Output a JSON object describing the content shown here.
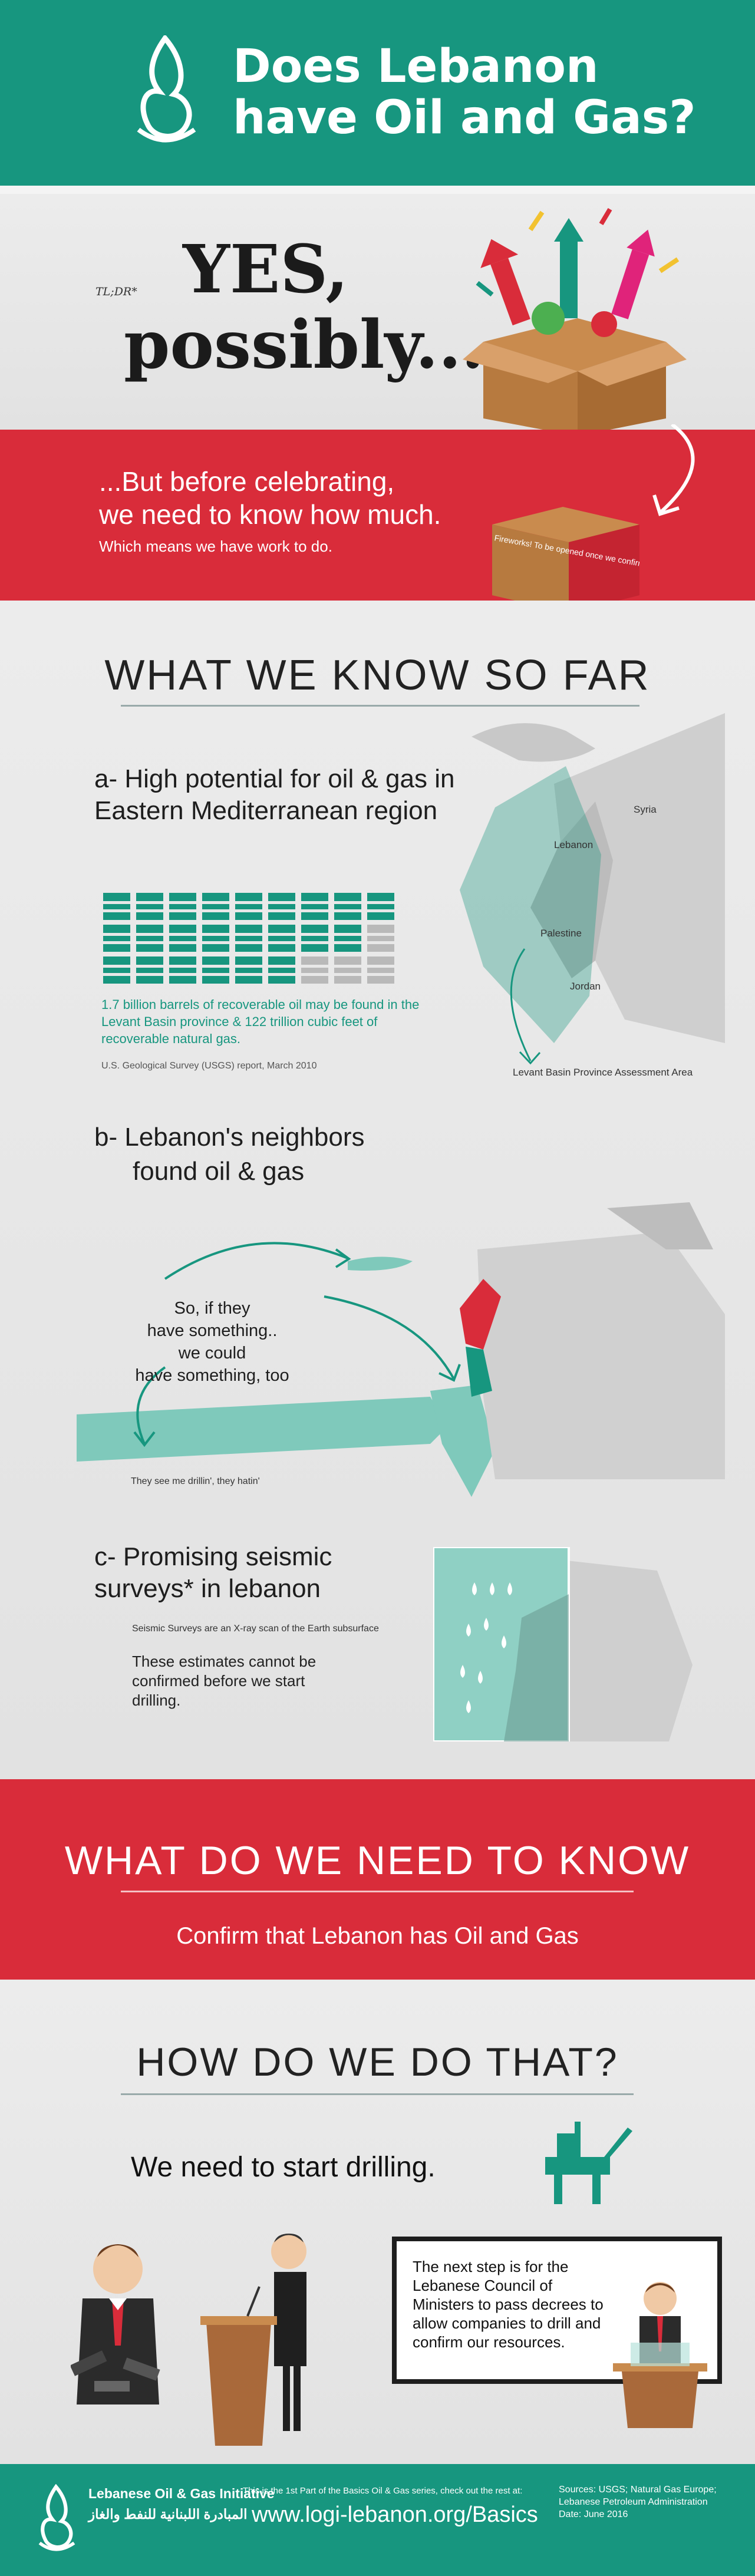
{
  "header": {
    "title_line1": "Does Lebanon",
    "title_line2": "have Oil and Gas?",
    "color": "#17967f"
  },
  "tldr": {
    "label": "TL;DR*",
    "answer_line1": "YES,",
    "answer_line2": "possibly..."
  },
  "caution": {
    "line1": "...But before celebrating,",
    "line2": "we need to know how much.",
    "note": "Which means we have work to do.",
    "box_text": "Fireworks! To be opened once we confirm oil & gas discovery",
    "color": "#d92c3a"
  },
  "what_we_know": {
    "title": "WHAT WE KNOW SO FAR",
    "a": {
      "heading": "a- High potential for oil & gas in Eastern Mediterranean region",
      "stat": "1.7 billion barrels of recoverable oil may be found in the Levant Basin province & 122 trillion cubic feet of recoverable natural gas.",
      "source": "U.S. Geological Survey (USGS) report, March 2010",
      "map_labels": {
        "syria": "Syria",
        "lebanon": "Lebanon",
        "palestine": "Palestine",
        "jordan": "Jordan",
        "levant": "Levant Basin Province Assessment Area"
      }
    },
    "b": {
      "heading_line1": "b- Lebanon's neighbors",
      "heading_line2": "found oil & gas",
      "text_line1": "So, if they",
      "text_line2": "have something..",
      "text_line3": "we could",
      "text_line4": "have something, too",
      "caption": "They see me drillin', they hatin'"
    },
    "c": {
      "heading": "c- Promising seismic surveys* in lebanon",
      "note": "Seismic Surveys are an X-ray scan of the Earth subsurface",
      "text": "These estimates cannot be confirmed before we start drilling."
    }
  },
  "need_to_know": {
    "title": "WHAT DO WE NEED TO KNOW",
    "subtitle": "Confirm that Lebanon has Oil and Gas"
  },
  "how": {
    "title": "HOW DO WE DO THAT?",
    "drill": "We need to start drilling.",
    "step": "The next step is for the Lebanese Council of Ministers to pass decrees to allow companies to drill and confirm our resources."
  },
  "footer": {
    "org_en": "Lebanese Oil & Gas Initiative",
    "org_ar": "المبادرة اللبنانية للنفط والغاز",
    "series_note": "This is the 1st Part of the Basics Oil & Gas series, check out the rest at:",
    "url": "www.logi-lebanon.org/Basics",
    "sources": "Sources: USGS; Natural Gas Europe; Lebanese Petroleum Administration Date: June 2016"
  }
}
